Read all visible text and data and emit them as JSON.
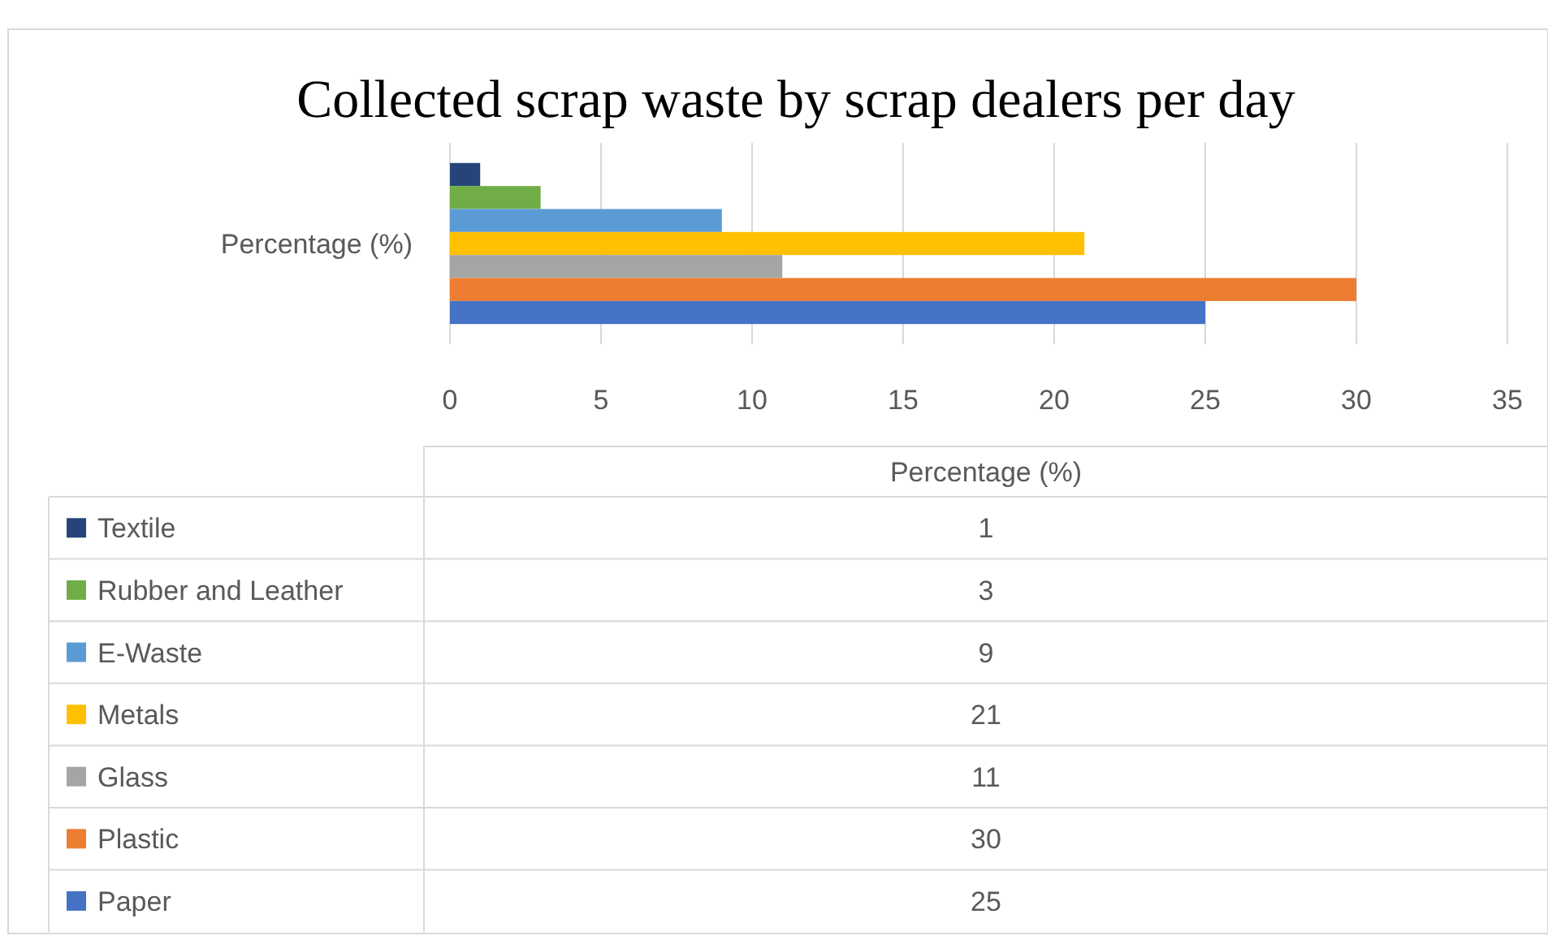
{
  "chart_data": [
    {
      "type": "bar",
      "orientation": "horizontal",
      "title": "Collected scrap waste by scrap dealers per day",
      "categories": [
        "Percentage (%)"
      ],
      "series": [
        {
          "name": "Textile",
          "color": "#264478",
          "values": [
            1
          ]
        },
        {
          "name": "Rubber and Leather",
          "color": "#70ad47",
          "values": [
            3
          ]
        },
        {
          "name": "E-Waste",
          "color": "#5b9bd5",
          "values": [
            9
          ]
        },
        {
          "name": "Metals",
          "color": "#ffc000",
          "values": [
            21
          ]
        },
        {
          "name": "Glass",
          "color": "#a5a5a5",
          "values": [
            11
          ]
        },
        {
          "name": "Plastic",
          "color": "#ed7d31",
          "values": [
            30
          ]
        },
        {
          "name": "Paper",
          "color": "#4472c4",
          "values": [
            25
          ]
        }
      ],
      "xlim": [
        0,
        35
      ],
      "xticks": [
        0,
        5,
        10,
        15,
        20,
        25,
        30,
        35
      ],
      "grid": "x",
      "legend": "bottom"
    },
    {
      "type": "other",
      "title": "Percentage (%)",
      "values": [
        1,
        3,
        9,
        21,
        11,
        30,
        25
      ],
      "data_labels": true
    }
  ]
}
